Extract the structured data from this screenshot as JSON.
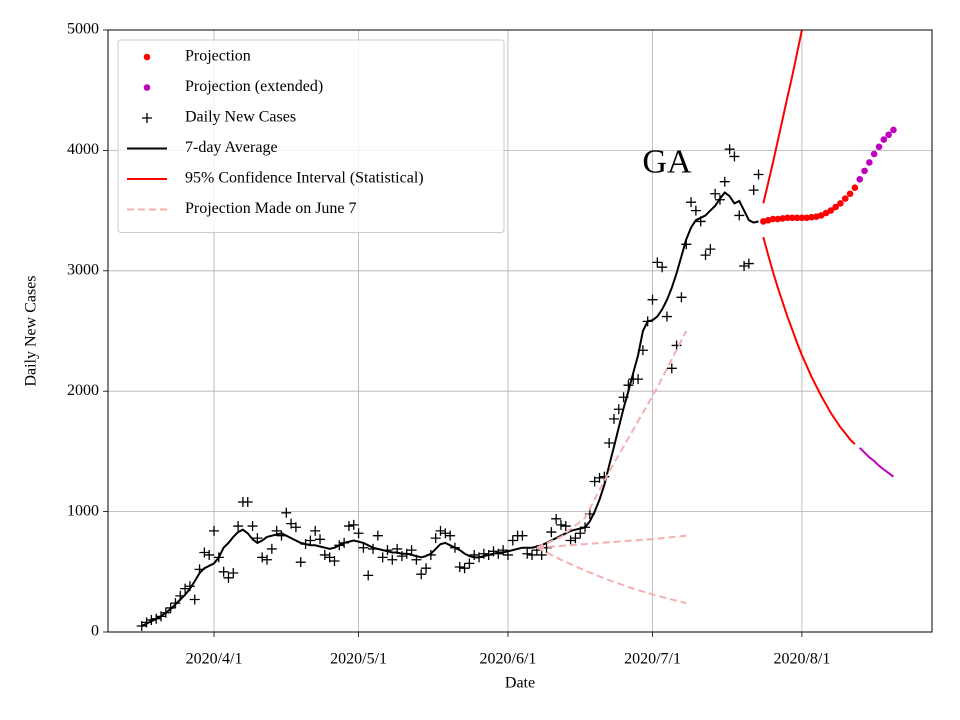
{
  "chart_data": {
    "type": "line",
    "xlabel": "Date",
    "ylabel": "Daily New Cases",
    "annotation": {
      "text": "GA",
      "x": "2020/7/4",
      "y": 3880
    },
    "xlim": [
      "2020/3/10",
      "2020/8/28"
    ],
    "xticks": [
      "2020/4/1",
      "2020/5/1",
      "2020/6/1",
      "2020/7/1",
      "2020/8/1"
    ],
    "ylim": [
      0,
      5000
    ],
    "yticks": [
      0,
      1000,
      2000,
      3000,
      4000,
      5000
    ],
    "grid": true,
    "legend": "upper left",
    "x": [
      "2020/3/17",
      "2020/3/18",
      "2020/3/19",
      "2020/3/20",
      "2020/3/21",
      "2020/3/22",
      "2020/3/23",
      "2020/3/24",
      "2020/3/25",
      "2020/3/26",
      "2020/3/27",
      "2020/3/28",
      "2020/3/29",
      "2020/3/30",
      "2020/3/31",
      "2020/4/1",
      "2020/4/2",
      "2020/4/3",
      "2020/4/4",
      "2020/4/5",
      "2020/4/6",
      "2020/4/7",
      "2020/4/8",
      "2020/4/9",
      "2020/4/10",
      "2020/4/11",
      "2020/4/12",
      "2020/4/13",
      "2020/4/14",
      "2020/4/15",
      "2020/4/16",
      "2020/4/17",
      "2020/4/18",
      "2020/4/19",
      "2020/4/20",
      "2020/4/21",
      "2020/4/22",
      "2020/4/23",
      "2020/4/24",
      "2020/4/25",
      "2020/4/26",
      "2020/4/27",
      "2020/4/28",
      "2020/4/29",
      "2020/4/30",
      "2020/5/1",
      "2020/5/2",
      "2020/5/3",
      "2020/5/4",
      "2020/5/5",
      "2020/5/6",
      "2020/5/7",
      "2020/5/8",
      "2020/5/9",
      "2020/5/10",
      "2020/5/11",
      "2020/5/12",
      "2020/5/13",
      "2020/5/14",
      "2020/5/15",
      "2020/5/16",
      "2020/5/17",
      "2020/5/18",
      "2020/5/19",
      "2020/5/20",
      "2020/5/21",
      "2020/5/22",
      "2020/5/23",
      "2020/5/24",
      "2020/5/25",
      "2020/5/26",
      "2020/5/27",
      "2020/5/28",
      "2020/5/29",
      "2020/5/30",
      "2020/5/31",
      "2020/6/1",
      "2020/6/2",
      "2020/6/3",
      "2020/6/4",
      "2020/6/5",
      "2020/6/6",
      "2020/6/7",
      "2020/6/8",
      "2020/6/9",
      "2020/6/10",
      "2020/6/11",
      "2020/6/12",
      "2020/6/13",
      "2020/6/14",
      "2020/6/15",
      "2020/6/16",
      "2020/6/17",
      "2020/6/18",
      "2020/6/19",
      "2020/6/20",
      "2020/6/21",
      "2020/6/22",
      "2020/6/23",
      "2020/6/24",
      "2020/6/25",
      "2020/6/26",
      "2020/6/27",
      "2020/6/28",
      "2020/6/29",
      "2020/6/30",
      "2020/7/1",
      "2020/7/2",
      "2020/7/3",
      "2020/7/4",
      "2020/7/5",
      "2020/7/6",
      "2020/7/7",
      "2020/7/8",
      "2020/7/9",
      "2020/7/10",
      "2020/7/11",
      "2020/7/12",
      "2020/7/13",
      "2020/7/14",
      "2020/7/15",
      "2020/7/16",
      "2020/7/17",
      "2020/7/18",
      "2020/7/19",
      "2020/7/20",
      "2020/7/21",
      "2020/7/22",
      "2020/7/23"
    ],
    "series": [
      {
        "name": "Projection",
        "style": "dot",
        "color": "#ff0000",
        "x": [
          "2020/7/24",
          "2020/7/25",
          "2020/7/26",
          "2020/7/27",
          "2020/7/28",
          "2020/7/29",
          "2020/7/30",
          "2020/7/31",
          "2020/8/1",
          "2020/8/2",
          "2020/8/3",
          "2020/8/4",
          "2020/8/5",
          "2020/8/6",
          "2020/8/7",
          "2020/8/8",
          "2020/8/9",
          "2020/8/10",
          "2020/8/11",
          "2020/8/12"
        ],
        "values": [
          3410,
          3420,
          3430,
          3430,
          3435,
          3440,
          3440,
          3440,
          3440,
          3440,
          3445,
          3450,
          3460,
          3480,
          3500,
          3530,
          3560,
          3600,
          3640,
          3690
        ]
      },
      {
        "name": "Projection (extended)",
        "style": "dot",
        "color": "#bf00bf",
        "x": [
          "2020/8/13",
          "2020/8/14",
          "2020/8/15",
          "2020/8/16",
          "2020/8/17",
          "2020/8/18",
          "2020/8/19",
          "2020/8/20"
        ],
        "values": [
          3760,
          3830,
          3900,
          3970,
          4030,
          4090,
          4130,
          4170
        ],
        "lower": [
          1530,
          1490,
          1450,
          1420,
          1380,
          1350,
          1320,
          1290
        ]
      },
      {
        "name": "Daily New Cases",
        "style": "plus",
        "color": "#000000",
        "values": [
          50,
          80,
          100,
          110,
          130,
          160,
          200,
          240,
          300,
          360,
          380,
          270,
          520,
          660,
          640,
          840,
          620,
          500,
          450,
          490,
          880,
          1080,
          1080,
          880,
          780,
          620,
          600,
          690,
          840,
          800,
          990,
          900,
          870,
          580,
          730,
          760,
          840,
          770,
          640,
          620,
          590,
          720,
          740,
          880,
          890,
          820,
          700,
          470,
          690,
          800,
          620,
          680,
          600,
          690,
          630,
          650,
          680,
          600,
          480,
          530,
          640,
          780,
          840,
          820,
          800,
          700,
          540,
          530,
          570,
          640,
          620,
          650,
          640,
          670,
          650,
          680,
          640,
          760,
          800,
          800,
          650,
          640,
          680,
          640,
          700,
          830,
          940,
          890,
          880,
          760,
          780,
          820,
          870,
          980,
          1250,
          1280,
          1290,
          1570,
          1770,
          1850,
          1950,
          2050,
          2100,
          2100,
          2340,
          2580,
          2760,
          3070,
          3030,
          2620,
          2190,
          2380,
          2780,
          3220,
          3570,
          3500,
          3410,
          3130,
          3180,
          3640,
          3590,
          3740,
          4010,
          3950,
          3460,
          3040,
          3060,
          3670,
          3800
        ]
      },
      {
        "name": "7-day Average",
        "style": "line",
        "color": "#000000",
        "values": [
          50,
          70,
          90,
          110,
          130,
          160,
          190,
          230,
          270,
          310,
          360,
          420,
          490,
          530,
          550,
          570,
          620,
          700,
          740,
          790,
          830,
          850,
          820,
          770,
          740,
          760,
          790,
          800,
          810,
          820,
          800,
          780,
          760,
          740,
          730,
          720,
          720,
          710,
          700,
          690,
          700,
          720,
          740,
          750,
          760,
          750,
          740,
          720,
          700,
          690,
          680,
          670,
          660,
          660,
          650,
          650,
          640,
          630,
          620,
          630,
          650,
          690,
          730,
          740,
          720,
          700,
          680,
          650,
          630,
          620,
          620,
          630,
          640,
          650,
          660,
          660,
          670,
          680,
          690,
          700,
          700,
          700,
          710,
          720,
          740,
          760,
          780,
          800,
          820,
          840,
          850,
          860,
          870,
          920,
          1000,
          1100,
          1220,
          1380,
          1540,
          1700,
          1860,
          2000,
          2150,
          2300,
          2500,
          2580,
          2590,
          2620,
          2680,
          2760,
          2860,
          2980,
          3120,
          3260,
          3360,
          3420,
          3440,
          3460,
          3500,
          3540,
          3600,
          3650,
          3620,
          3560,
          3580,
          3500,
          3420,
          3400,
          3410
        ]
      },
      {
        "name": "95% Confidence Interval (Statistical)",
        "style": "line",
        "color": "#ff0000",
        "x": [
          "2020/7/24",
          "2020/7/25",
          "2020/7/26",
          "2020/7/27",
          "2020/7/28",
          "2020/7/29",
          "2020/7/30",
          "2020/7/31",
          "2020/8/1",
          "2020/8/2",
          "2020/8/3",
          "2020/8/4",
          "2020/8/5",
          "2020/8/6",
          "2020/8/7",
          "2020/8/8",
          "2020/8/9",
          "2020/8/10",
          "2020/8/11",
          "2020/8/12"
        ],
        "upper": [
          3560,
          3730,
          3900,
          4080,
          4260,
          4440,
          4620,
          4810,
          5000,
          null,
          null,
          null,
          null,
          null,
          null,
          null,
          null,
          null,
          null,
          null
        ],
        "lower": [
          3280,
          3130,
          2990,
          2860,
          2740,
          2620,
          2510,
          2400,
          2300,
          2210,
          2120,
          2040,
          1960,
          1890,
          1820,
          1760,
          1700,
          1650,
          1600,
          1560
        ]
      },
      {
        "name": "Projection Made on June 7",
        "style": "dashed",
        "color": "#f4b0b0",
        "x": [
          "2020/6/7",
          "2020/6/12",
          "2020/6/17",
          "2020/6/22",
          "2020/6/27",
          "2020/7/2",
          "2020/7/8"
        ],
        "upper": [
          700,
          790,
          950,
          1330,
          1680,
          2030,
          2500
        ],
        "values": [
          700,
          715,
          730,
          745,
          760,
          775,
          800
        ],
        "lower": [
          700,
          600,
          510,
          430,
          360,
          300,
          240
        ]
      }
    ]
  }
}
